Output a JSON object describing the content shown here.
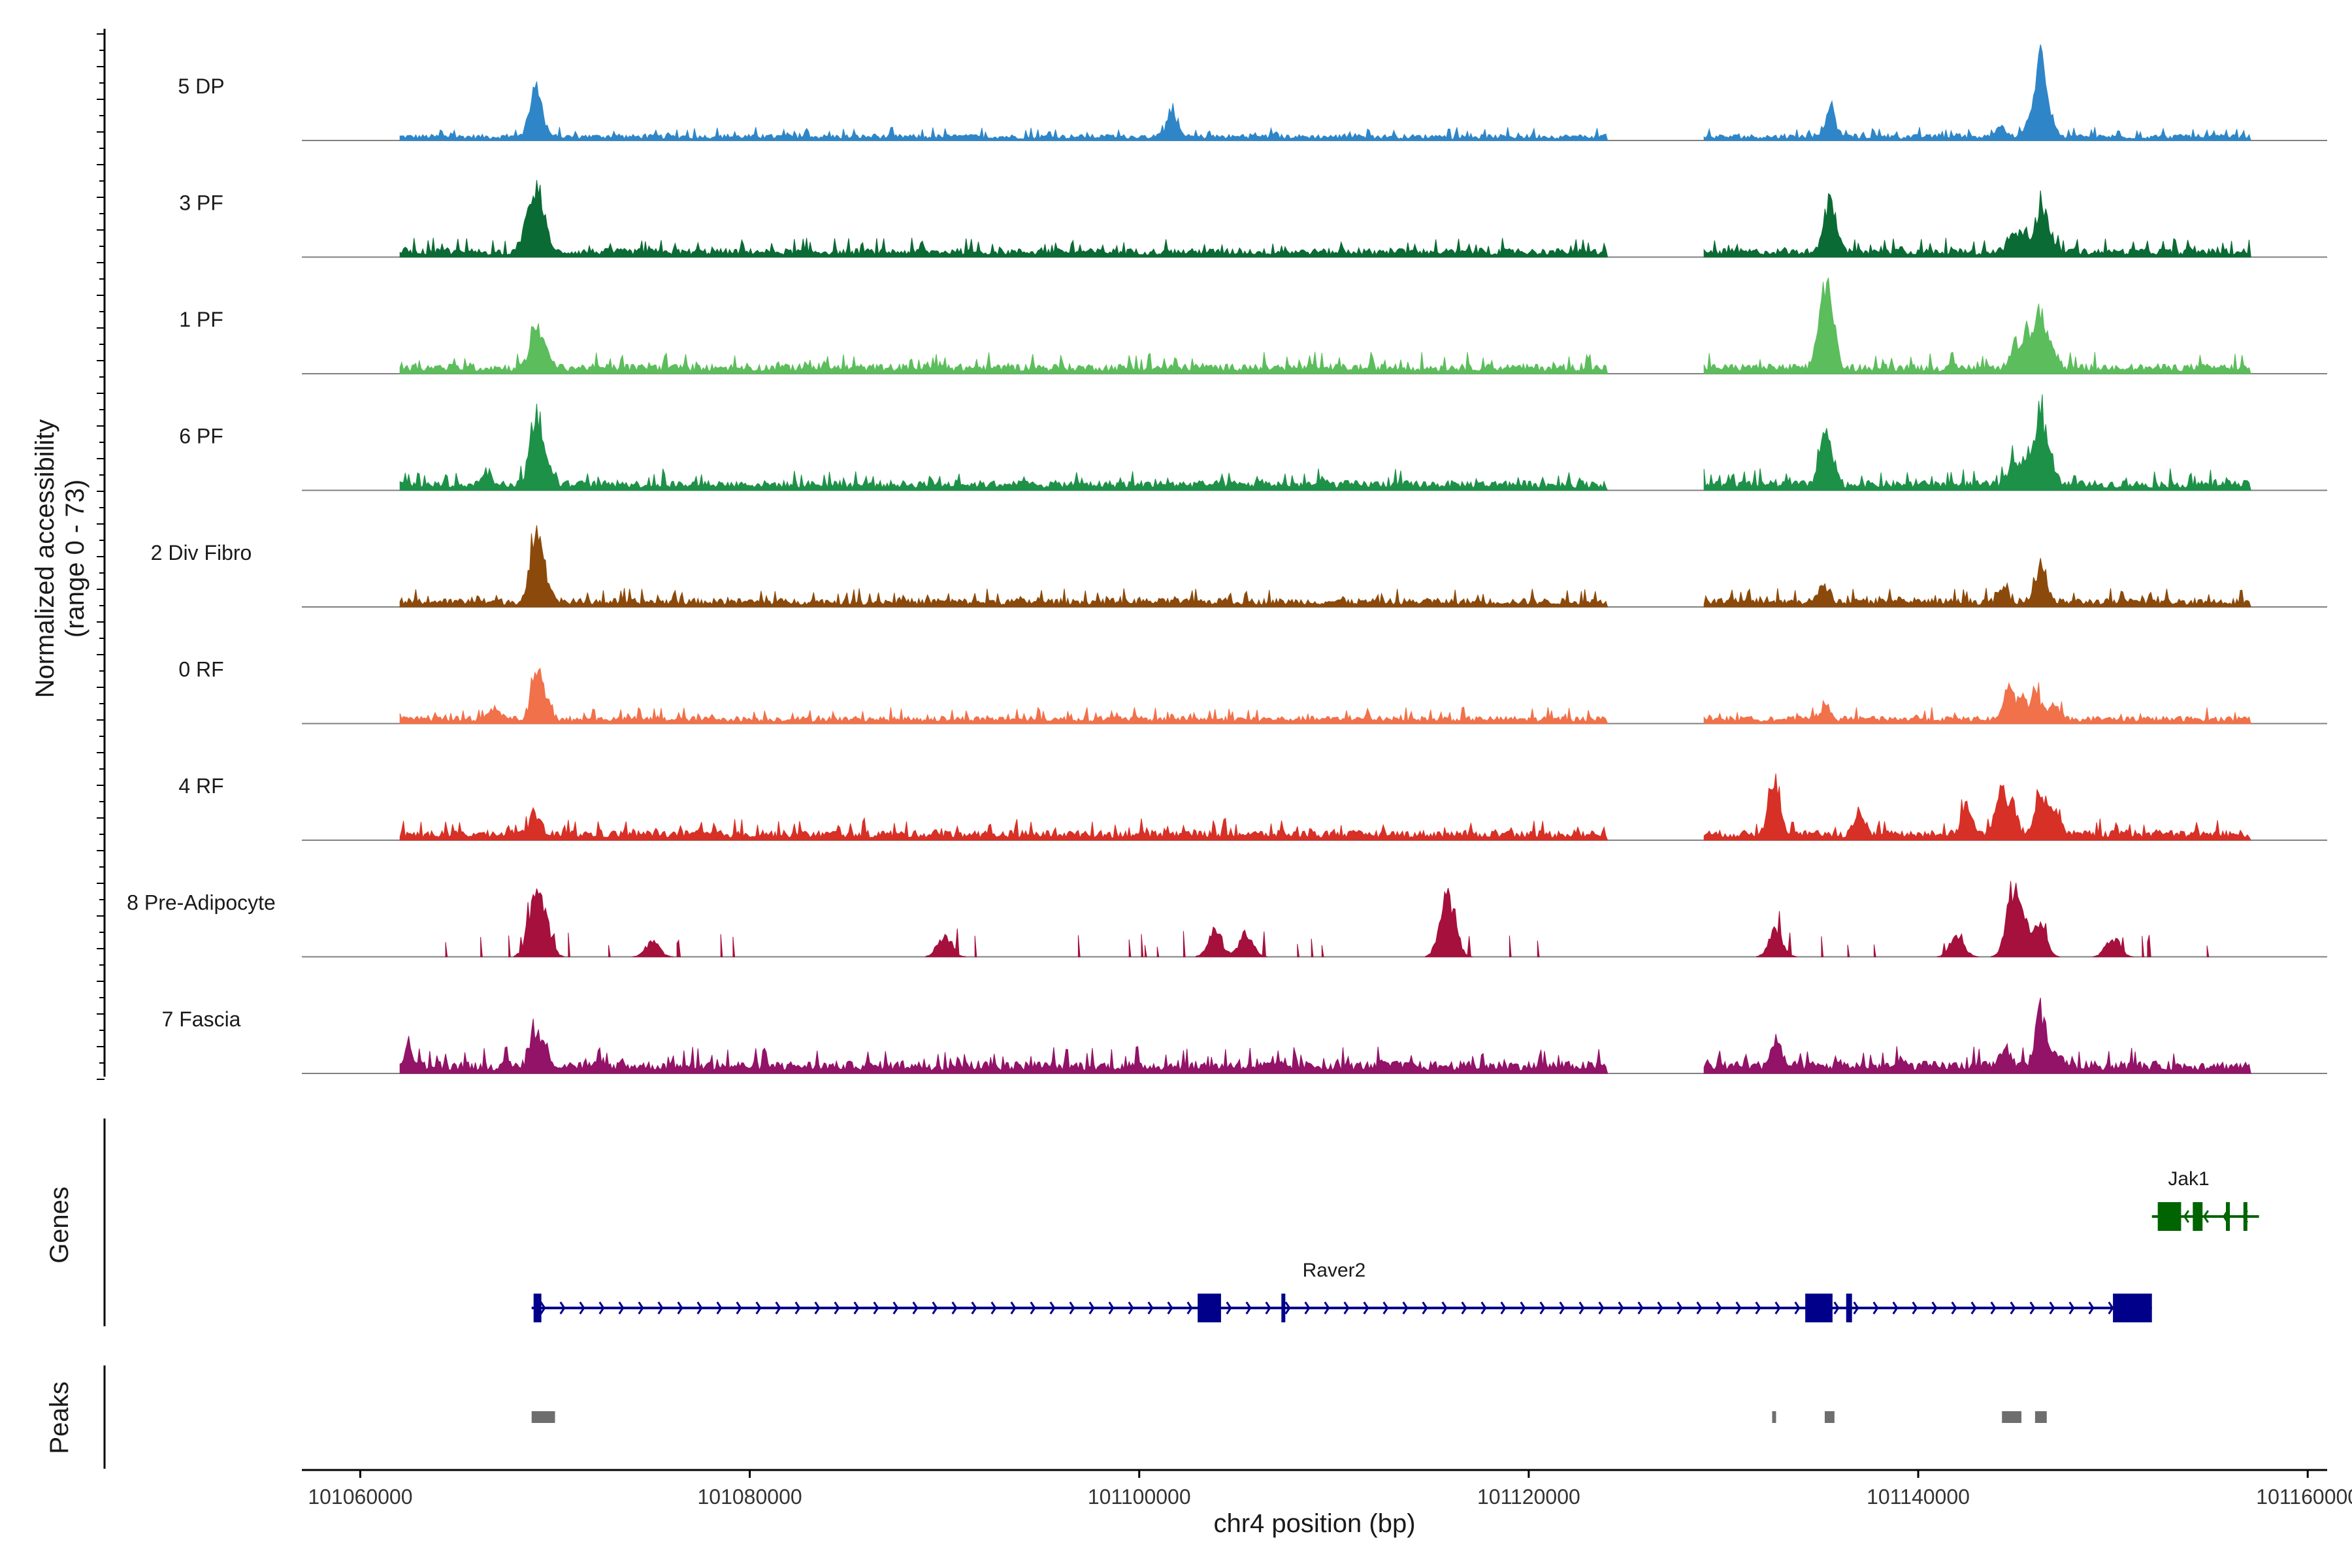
{
  "chart_data": {
    "type": "genome-coverage",
    "xlabel": "chr4 position (bp)",
    "ylabel_line1": "Normalized accessibility",
    "ylabel_line2": "(range 0 - 73)",
    "y_range": [
      0,
      73
    ],
    "x_range": [
      101057000,
      101161000
    ],
    "x_ticks": [
      {
        "value": 101060000,
        "label": "101060000"
      },
      {
        "value": 101080000,
        "label": "101080000"
      },
      {
        "value": 101100000,
        "label": "101100000"
      },
      {
        "value": 101120000,
        "label": "101120000"
      },
      {
        "value": 101140000,
        "label": "101140000"
      },
      {
        "value": 101160000,
        "label": "101160000"
      }
    ],
    "tracks": [
      {
        "name": "5 DP",
        "color": "#2E86C8",
        "sparse": false,
        "base": 0.05,
        "peaks": [
          [
            101068900,
            0.55
          ],
          [
            101069300,
            0.25
          ],
          [
            101101700,
            0.35
          ],
          [
            101135500,
            0.33
          ],
          [
            101144200,
            0.12
          ],
          [
            101145700,
            0.18
          ],
          [
            101146300,
            1.0
          ],
          [
            101146800,
            0.2
          ]
        ]
      },
      {
        "name": "3 PF",
        "color": "#0B6B34",
        "sparse": false,
        "base": 0.07,
        "peaks": [
          [
            101068500,
            0.3
          ],
          [
            101069000,
            0.62
          ],
          [
            101069400,
            0.35
          ],
          [
            101135300,
            0.5
          ],
          [
            101135700,
            0.35
          ],
          [
            101144800,
            0.2
          ],
          [
            101145400,
            0.28
          ],
          [
            101146300,
            0.62
          ],
          [
            101146800,
            0.18
          ]
        ]
      },
      {
        "name": "1 PF",
        "color": "#5CBD5C",
        "sparse": false,
        "base": 0.08,
        "peaks": [
          [
            101069000,
            0.6
          ],
          [
            101069500,
            0.22
          ],
          [
            101135100,
            0.85
          ],
          [
            101135500,
            0.7
          ],
          [
            101144900,
            0.25
          ],
          [
            101145600,
            0.4
          ],
          [
            101146300,
            0.72
          ],
          [
            101146900,
            0.2
          ]
        ]
      },
      {
        "name": "6 PF",
        "color": "#1E9148",
        "sparse": false,
        "base": 0.08,
        "peaks": [
          [
            101066500,
            0.2
          ],
          [
            101068800,
            0.3
          ],
          [
            101069100,
            0.75
          ],
          [
            101069600,
            0.25
          ],
          [
            101135100,
            0.45
          ],
          [
            101135500,
            0.4
          ],
          [
            101144900,
            0.3
          ],
          [
            101145600,
            0.42
          ],
          [
            101146300,
            1.0
          ],
          [
            101146900,
            0.25
          ]
        ]
      },
      {
        "name": "2 Div Fibro",
        "color": "#8B4A0B",
        "sparse": false,
        "base": 0.07,
        "peaks": [
          [
            101069000,
            1.0
          ],
          [
            101069500,
            0.35
          ],
          [
            101135200,
            0.25
          ],
          [
            101144400,
            0.18
          ],
          [
            101146300,
            0.55
          ]
        ]
      },
      {
        "name": "0 RF",
        "color": "#F0714A",
        "sparse": false,
        "base": 0.06,
        "peaks": [
          [
            101066900,
            0.15
          ],
          [
            101069000,
            0.58
          ],
          [
            101069500,
            0.25
          ],
          [
            101135200,
            0.15
          ],
          [
            101144600,
            0.35
          ],
          [
            101145300,
            0.3
          ],
          [
            101146100,
            0.32
          ],
          [
            101147000,
            0.2
          ]
        ]
      },
      {
        "name": "4 RF",
        "color": "#D73026",
        "sparse": false,
        "base": 0.08,
        "peaks": [
          [
            101069000,
            0.28
          ],
          [
            101132700,
            0.6
          ],
          [
            101132400,
            0.25
          ],
          [
            101137000,
            0.3
          ],
          [
            101142500,
            0.4
          ],
          [
            101144200,
            0.55
          ],
          [
            101144800,
            0.48
          ],
          [
            101146300,
            0.62
          ],
          [
            101147000,
            0.35
          ]
        ]
      },
      {
        "name": "8 Pre-Adipocyte",
        "color": "#A5103C",
        "sparse": true,
        "base": 0.0,
        "peaks": [
          [
            101068900,
            0.6
          ],
          [
            101069400,
            0.55
          ],
          [
            101075000,
            0.2
          ],
          [
            101090000,
            0.3
          ],
          [
            101103900,
            0.35
          ],
          [
            101105500,
            0.3
          ],
          [
            101115700,
            0.5
          ],
          [
            101116000,
            0.45
          ],
          [
            101132700,
            0.35
          ],
          [
            101142000,
            0.3
          ],
          [
            101144800,
            0.6
          ],
          [
            101145200,
            0.55
          ],
          [
            101146200,
            0.42
          ],
          [
            101150000,
            0.25
          ]
        ]
      },
      {
        "name": "7 Fascia",
        "color": "#921367",
        "sparse": false,
        "base": 0.1,
        "peaks": [
          [
            101062500,
            0.18
          ],
          [
            101069000,
            0.42
          ],
          [
            101069500,
            0.25
          ],
          [
            101132700,
            0.33
          ],
          [
            101144500,
            0.25
          ],
          [
            101146300,
            0.7
          ],
          [
            101147100,
            0.2
          ]
        ]
      }
    ],
    "coverage_regions": [
      [
        101062000,
        101124000
      ],
      [
        101129000,
        101157000
      ]
    ],
    "genes_axis_title": "Genes",
    "genes": [
      {
        "name": "Raver2",
        "color": "#00008B",
        "strand": "+",
        "start": 101068800,
        "end": 101152000,
        "exons": [
          [
            101068900,
            101069300
          ],
          [
            101103000,
            101104200
          ],
          [
            101107300,
            101107500
          ],
          [
            101134200,
            101135600
          ],
          [
            101136300,
            101136600
          ],
          [
            101150000,
            101152000
          ]
        ]
      },
      {
        "name": "Jak1",
        "color": "#006400",
        "strand": "-",
        "start": 101152000,
        "end": 101157500,
        "exons": [
          [
            101152300,
            101153500
          ],
          [
            101154100,
            101154600
          ],
          [
            101155800,
            101156000
          ],
          [
            101156700,
            101156900
          ]
        ]
      }
    ],
    "peaks_axis_title": "Peaks",
    "peak_regions": [
      [
        101068800,
        101070000
      ],
      [
        101132500,
        101132700
      ],
      [
        101135200,
        101135700
      ],
      [
        101144300,
        101145300
      ],
      [
        101146000,
        101146600
      ]
    ]
  }
}
